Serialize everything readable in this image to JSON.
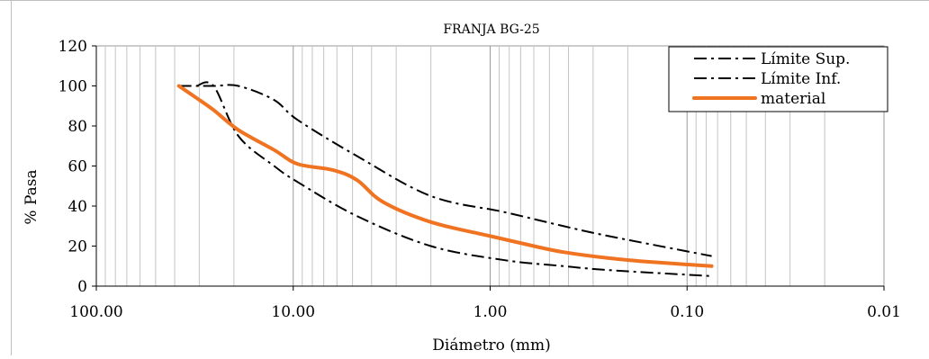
{
  "chart_data": {
    "type": "line",
    "title": "FRANJA BG-25",
    "xlabel": "Diámetro (mm)",
    "ylabel": "% Pasa",
    "x_scale": "log",
    "x_reversed": true,
    "xlim": [
      100,
      0.01
    ],
    "ylim": [
      0,
      120
    ],
    "x_ticks": [
      {
        "value": 100,
        "label": "100.00"
      },
      {
        "value": 10,
        "label": "10.00"
      },
      {
        "value": 1,
        "label": "1.00"
      },
      {
        "value": 0.1,
        "label": "0.10"
      },
      {
        "value": 0.01,
        "label": "0.01"
      }
    ],
    "y_ticks": [
      {
        "value": 0,
        "label": "0"
      },
      {
        "value": 20,
        "label": "20"
      },
      {
        "value": 40,
        "label": "40"
      },
      {
        "value": 60,
        "label": "60"
      },
      {
        "value": 80,
        "label": "80"
      },
      {
        "value": 100,
        "label": "100"
      },
      {
        "value": 120,
        "label": "120"
      }
    ],
    "grid": "vertical minor log lines",
    "legend_position": "top-right",
    "series": [
      {
        "name": "Límite Sup.",
        "color": "#000000",
        "style": "dash-dot",
        "points": [
          [
            38.1,
            100
          ],
          [
            25.4,
            100
          ],
          [
            19.0,
            100
          ],
          [
            12.5,
            93
          ],
          [
            9.5,
            83
          ],
          [
            4.75,
            65
          ],
          [
            2.0,
            45
          ],
          [
            0.85,
            37
          ],
          [
            0.425,
            30
          ],
          [
            0.25,
            25
          ],
          [
            0.075,
            15
          ]
        ]
      },
      {
        "name": "Límite Inf.",
        "color": "#000000",
        "style": "dash-dot",
        "points": [
          [
            31.0,
            100
          ],
          [
            25.4,
            100
          ],
          [
            19.0,
            75
          ],
          [
            12.5,
            60
          ],
          [
            9.5,
            52
          ],
          [
            4.75,
            35
          ],
          [
            2.0,
            20
          ],
          [
            0.85,
            13
          ],
          [
            0.425,
            10
          ],
          [
            0.25,
            8
          ],
          [
            0.075,
            5
          ]
        ]
      },
      {
        "name": "material",
        "color": "#F07322",
        "style": "solid",
        "points": [
          [
            38.1,
            100
          ],
          [
            31.0,
            94
          ],
          [
            25.4,
            88
          ],
          [
            19.0,
            78
          ],
          [
            12.5,
            68
          ],
          [
            9.5,
            61
          ],
          [
            6.3,
            58
          ],
          [
            4.75,
            53
          ],
          [
            3.5,
            42
          ],
          [
            2.0,
            32
          ],
          [
            1.0,
            25
          ],
          [
            0.6,
            20
          ],
          [
            0.425,
            17
          ],
          [
            0.25,
            14
          ],
          [
            0.15,
            12
          ],
          [
            0.075,
            10
          ]
        ]
      }
    ]
  }
}
